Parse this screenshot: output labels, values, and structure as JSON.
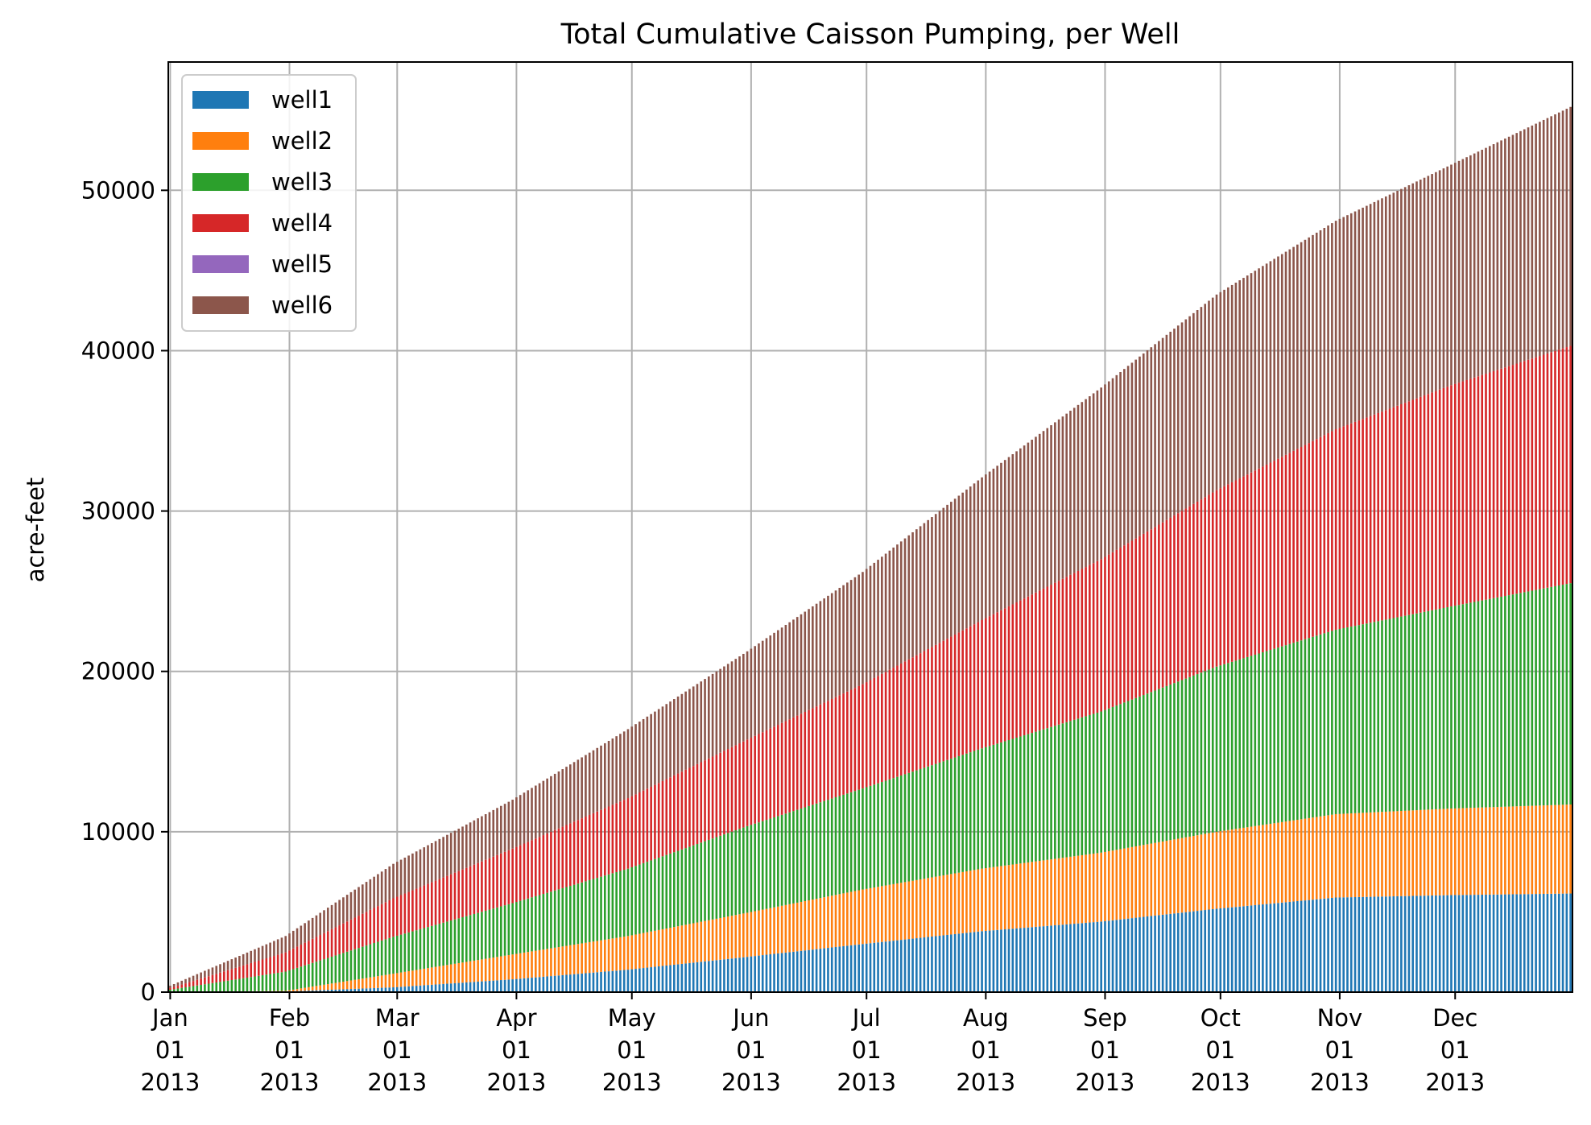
{
  "chart_data": {
    "type": "bar",
    "stacked": true,
    "title": "Total Cumulative Caisson Pumping, per Well",
    "xlabel": "",
    "ylabel": "acre-feet",
    "ylim": [
      0,
      58000
    ],
    "grid": true,
    "legend_position": "top-left",
    "x_start": "2013-01-01",
    "x_end": "2013-12-31",
    "yticks": [
      {
        "value": 0,
        "label": "0"
      },
      {
        "value": 10000,
        "label": "10000"
      },
      {
        "value": 20000,
        "label": "20000"
      },
      {
        "value": 30000,
        "label": "30000"
      },
      {
        "value": 40000,
        "label": "40000"
      },
      {
        "value": 50000,
        "label": "50000"
      }
    ],
    "xticks": [
      {
        "date": "2013-01-01",
        "month": "Jan",
        "day": "01",
        "year": "2013"
      },
      {
        "date": "2013-02-01",
        "month": "Feb",
        "day": "01",
        "year": "2013"
      },
      {
        "date": "2013-03-01",
        "month": "Mar",
        "day": "01",
        "year": "2013"
      },
      {
        "date": "2013-04-01",
        "month": "Apr",
        "day": "01",
        "year": "2013"
      },
      {
        "date": "2013-05-01",
        "month": "May",
        "day": "01",
        "year": "2013"
      },
      {
        "date": "2013-06-01",
        "month": "Jun",
        "day": "01",
        "year": "2013"
      },
      {
        "date": "2013-07-01",
        "month": "Jul",
        "day": "01",
        "year": "2013"
      },
      {
        "date": "2013-08-01",
        "month": "Aug",
        "day": "01",
        "year": "2013"
      },
      {
        "date": "2013-09-01",
        "month": "Sep",
        "day": "01",
        "year": "2013"
      },
      {
        "date": "2013-10-01",
        "month": "Oct",
        "day": "01",
        "year": "2013"
      },
      {
        "date": "2013-11-01",
        "month": "Nov",
        "day": "01",
        "year": "2013"
      },
      {
        "date": "2013-12-01",
        "month": "Dec",
        "day": "01",
        "year": "2013"
      }
    ],
    "dates": [
      "2013-01-01",
      "2013-01-31",
      "2013-02-28",
      "2013-03-31",
      "2013-04-30",
      "2013-05-31",
      "2013-06-30",
      "2013-07-31",
      "2013-08-31",
      "2013-09-30",
      "2013-10-31",
      "2013-11-30",
      "2013-12-31"
    ],
    "series": [
      {
        "name": "well1",
        "color": "#1f77b4",
        "values": [
          0,
          40,
          300,
          800,
          1400,
          2200,
          3000,
          3800,
          4400,
          5200,
          5900,
          6050,
          6150
        ]
      },
      {
        "name": "well2",
        "color": "#ff7f0e",
        "values": [
          0,
          40,
          850,
          1550,
          2100,
          2750,
          3400,
          3900,
          4300,
          4800,
          5200,
          5400,
          5550
        ]
      },
      {
        "name": "well3",
        "color": "#2ca02c",
        "values": [
          150,
          1200,
          2300,
          3200,
          4200,
          5400,
          6300,
          7500,
          8800,
          10300,
          11500,
          12600,
          13800
        ]
      },
      {
        "name": "well4",
        "color": "#d62728",
        "values": [
          100,
          1200,
          2400,
          3400,
          4400,
          5400,
          6500,
          8000,
          9500,
          11000,
          12500,
          13800,
          14800
        ]
      },
      {
        "name": "well5",
        "color": "#9467bd",
        "values": [
          0,
          0,
          0,
          0,
          0,
          0,
          0,
          0,
          0,
          0,
          0,
          0,
          0
        ]
      },
      {
        "name": "well6",
        "color": "#8c564b",
        "values": [
          150,
          1020,
          2150,
          3050,
          4300,
          5500,
          7000,
          8900,
          10700,
          12200,
          13000,
          13750,
          14900
        ]
      }
    ]
  }
}
